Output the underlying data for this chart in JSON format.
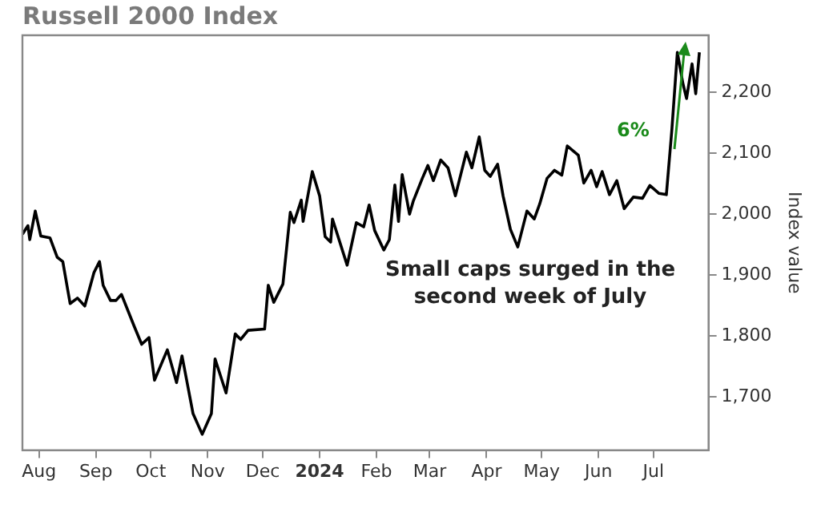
{
  "chart_data": {
    "type": "line",
    "title": "Russell 2000 Index",
    "ylabel": "Index value",
    "annotations": [
      "6%",
      "Small caps surged in the second week of July"
    ],
    "xlim": [
      "2023-07-23",
      "2024-07-31"
    ],
    "xticks": [
      {
        "value": "2023-08-01",
        "label": "Aug"
      },
      {
        "value": "2023-09-01",
        "label": "Sep"
      },
      {
        "value": "2023-10-01",
        "label": "Oct"
      },
      {
        "value": "2023-11-01",
        "label": "Nov"
      },
      {
        "value": "2023-12-01",
        "label": "Dec"
      },
      {
        "value": "2024-01-01",
        "label": "2024"
      },
      {
        "value": "2024-02-01",
        "label": "Feb"
      },
      {
        "value": "2024-03-01",
        "label": "Mar"
      },
      {
        "value": "2024-04-01",
        "label": "Apr"
      },
      {
        "value": "2024-05-01",
        "label": "May"
      },
      {
        "value": "2024-06-01",
        "label": "Jun"
      },
      {
        "value": "2024-07-01",
        "label": "Jul"
      }
    ],
    "ylim": [
      1612,
      2294
    ],
    "yticks": [
      {
        "value": 1700,
        "label": "1,700"
      },
      {
        "value": 1800,
        "label": "1,800"
      },
      {
        "value": 1900,
        "label": "1,900"
      },
      {
        "value": 2000,
        "label": "2,000"
      },
      {
        "value": 2100,
        "label": "2,100"
      },
      {
        "value": 2200,
        "label": "2,200"
      }
    ],
    "grid": false,
    "legend": false,
    "marker": "none",
    "line_style": "solid",
    "x": [
      "2023-07-23",
      "2023-07-26",
      "2023-07-27",
      "2023-07-30",
      "2023-08-02",
      "2023-08-07",
      "2023-08-11",
      "2023-08-14",
      "2023-08-18",
      "2023-08-22",
      "2023-08-26",
      "2023-08-31",
      "2023-09-03",
      "2023-09-05",
      "2023-09-09",
      "2023-09-12",
      "2023-09-15",
      "2023-09-22",
      "2023-09-26",
      "2023-09-30",
      "2023-10-03",
      "2023-10-10",
      "2023-10-15",
      "2023-10-18",
      "2023-10-24",
      "2023-10-29",
      "2023-11-03",
      "2023-11-05",
      "2023-11-11",
      "2023-11-16",
      "2023-11-19",
      "2023-11-23",
      "2023-12-02",
      "2023-12-04",
      "2023-12-07",
      "2023-12-12",
      "2023-12-16",
      "2023-12-18",
      "2023-12-22",
      "2023-12-23",
      "2023-12-28",
      "2024-01-01",
      "2024-01-04",
      "2024-01-07",
      "2024-01-08",
      "2024-01-16",
      "2024-01-21",
      "2024-01-25",
      "2024-01-28",
      "2024-01-31",
      "2024-02-05",
      "2024-02-08",
      "2024-02-11",
      "2024-02-13",
      "2024-02-15",
      "2024-02-19",
      "2024-02-21",
      "2024-02-26",
      "2024-02-29",
      "2024-03-03",
      "2024-03-07",
      "2024-03-11",
      "2024-03-15",
      "2024-03-21",
      "2024-03-24",
      "2024-03-28",
      "2024-03-31",
      "2024-04-03",
      "2024-04-07",
      "2024-04-10",
      "2024-04-14",
      "2024-04-18",
      "2024-04-23",
      "2024-04-27",
      "2024-04-30",
      "2024-05-04",
      "2024-05-08",
      "2024-05-12",
      "2024-05-15",
      "2024-05-21",
      "2024-05-24",
      "2024-05-28",
      "2024-05-31",
      "2024-06-03",
      "2024-06-07",
      "2024-06-11",
      "2024-06-15",
      "2024-06-20",
      "2024-06-25",
      "2024-06-29",
      "2024-07-04",
      "2024-07-08",
      "2024-07-11",
      "2024-07-14",
      "2024-07-17",
      "2024-07-19",
      "2024-07-22",
      "2024-07-24",
      "2024-07-26"
    ],
    "series": [
      {
        "color": "#000000",
        "values": [
          1967,
          1981,
          1958,
          2005,
          1964,
          1961,
          1929,
          1922,
          1853,
          1862,
          1849,
          1904,
          1922,
          1883,
          1858,
          1858,
          1868,
          1815,
          1786,
          1797,
          1727,
          1777,
          1723,
          1767,
          1672,
          1638,
          1672,
          1762,
          1706,
          1803,
          1794,
          1809,
          1811,
          1883,
          1855,
          1885,
          2003,
          1986,
          2023,
          1988,
          2070,
          2030,
          1963,
          1954,
          1992,
          1916,
          1986,
          1979,
          2015,
          1973,
          1941,
          1958,
          2048,
          1988,
          2065,
          2000,
          2021,
          2059,
          2080,
          2055,
          2089,
          2076,
          2030,
          2102,
          2076,
          2127,
          2072,
          2062,
          2082,
          2030,
          1975,
          1946,
          2005,
          1992,
          2017,
          2059,
          2072,
          2064,
          2112,
          2097,
          2051,
          2072,
          2045,
          2070,
          2032,
          2055,
          2009,
          2028,
          2026,
          2047,
          2034,
          2032,
          2139,
          2266,
          2215,
          2190,
          2247,
          2198,
          2266
        ]
      }
    ]
  }
}
